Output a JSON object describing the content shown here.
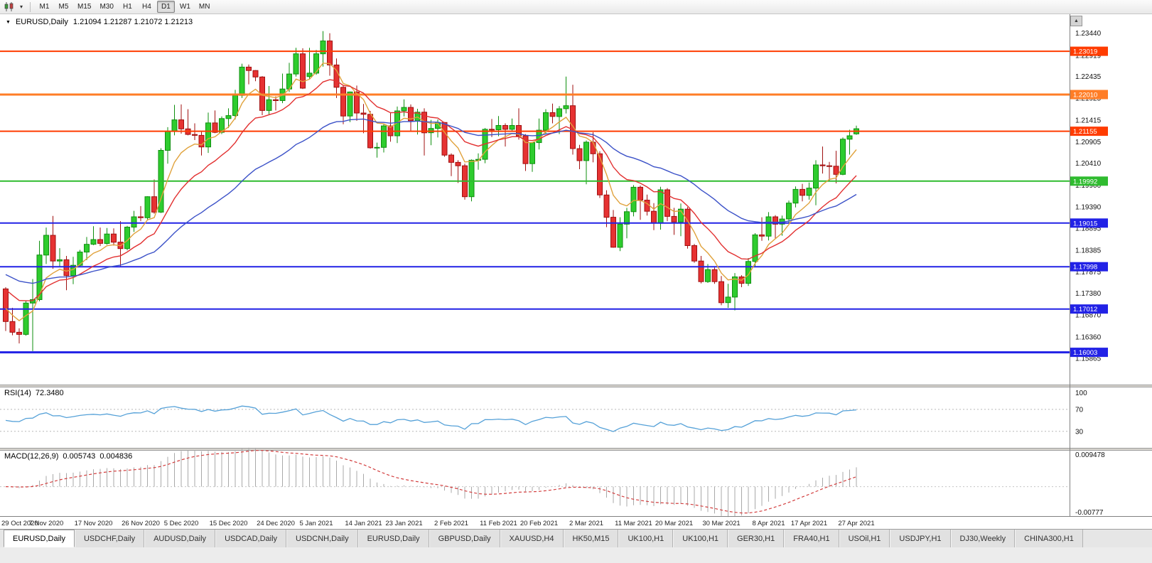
{
  "icons": {
    "chart_dropdown_caret": "▼",
    "toolbar_caret": "▾",
    "scroll_up": "▲"
  },
  "toolbar": {
    "timeframes": [
      "M1",
      "M5",
      "M15",
      "M30",
      "H1",
      "H4",
      "D1",
      "W1",
      "MN"
    ],
    "active_timeframe": "D1"
  },
  "chart": {
    "title": {
      "symbol": "EURUSD,Daily",
      "values": "1.21094 1.21287 1.21072 1.21213"
    },
    "price_axis_labels": [
      "1.23440",
      "1.22919",
      "1.22435",
      "1.21925",
      "1.21415",
      "1.20905",
      "1.20410",
      "1.19900",
      "1.19390",
      "1.18895",
      "1.18385",
      "1.17875",
      "1.17380",
      "1.16870",
      "1.16360",
      "1.15865"
    ],
    "hlines": [
      {
        "price": 1.23019,
        "label": "1.23019",
        "color": "#ff3c00",
        "width": 2
      },
      {
        "price": 1.2201,
        "label": "1.22010",
        "color": "#ff7d26",
        "width": 3
      },
      {
        "price": 1.21155,
        "label": "1.21155",
        "color": "#ff3c00",
        "width": 2
      },
      {
        "price": 1.19992,
        "label": "1.19992",
        "color": "#2fbb2f",
        "width": 2
      },
      {
        "price": 1.19015,
        "label": "1.19015",
        "color": "#2222e6",
        "width": 2
      },
      {
        "price": 1.17998,
        "label": "1.17998",
        "color": "#2222e6",
        "width": 2
      },
      {
        "price": 1.17012,
        "label": "1.17012",
        "color": "#2222e6",
        "width": 2
      },
      {
        "price": 1.16003,
        "label": "1.16003",
        "color": "#2222e6",
        "width": 3
      }
    ]
  },
  "chart_data": {
    "type": "candlestick",
    "symbol": "EURUSD",
    "timeframe": "Daily",
    "last_candle": {
      "open": 1.21094,
      "high": 1.21287,
      "low": 1.21072,
      "close": 1.21213
    },
    "price_range": {
      "max": 1.2385,
      "min": 1.1525
    },
    "colors": {
      "bull": "#2ecc2e",
      "bull_edge": "#0f8f0f",
      "bear": "#e63232",
      "bear_edge": "#a01010"
    },
    "moving_averages": [
      {
        "name": "fast-orange",
        "period": 6,
        "seed": 1.1715,
        "color": "#e0a23c"
      },
      {
        "name": "mid-red",
        "period": 14,
        "seed": 1.1758,
        "color": "#e23030"
      },
      {
        "name": "slow-blue",
        "period": 34,
        "seed": 1.1788,
        "color": "#3c52c8"
      }
    ],
    "date_ticks": [
      {
        "index": 0,
        "label": "29 Oct 2020"
      },
      {
        "index": 6,
        "label": "7 Nov 2020"
      },
      {
        "index": 13,
        "label": "17 Nov 2020"
      },
      {
        "index": 20,
        "label": "26 Nov 2020"
      },
      {
        "index": 26,
        "label": "5 Dec 2020"
      },
      {
        "index": 33,
        "label": "15 Dec 2020"
      },
      {
        "index": 40,
        "label": "24 Dec 2020"
      },
      {
        "index": 46,
        "label": "5 Jan 2021"
      },
      {
        "index": 53,
        "label": "14 Jan 2021"
      },
      {
        "index": 59,
        "label": "23 Jan 2021"
      },
      {
        "index": 66,
        "label": "2 Feb 2021"
      },
      {
        "index": 73,
        "label": "11 Feb 2021"
      },
      {
        "index": 79,
        "label": "20 Feb 2021"
      },
      {
        "index": 86,
        "label": "2 Mar 2021"
      },
      {
        "index": 93,
        "label": "11 Mar 2021"
      },
      {
        "index": 99,
        "label": "20 Mar 2021"
      },
      {
        "index": 106,
        "label": "30 Mar 2021"
      },
      {
        "index": 113,
        "label": "8 Apr 2021"
      },
      {
        "index": 119,
        "label": "17 Apr 2021"
      },
      {
        "index": 126,
        "label": "27 Apr 2021"
      }
    ],
    "candles": [
      [
        1.1748,
        1.1752,
        1.165,
        1.1672
      ],
      [
        1.1672,
        1.1704,
        1.164,
        1.1647
      ],
      [
        1.1647,
        1.1656,
        1.1621,
        1.1642
      ],
      [
        1.1642,
        1.172,
        1.1639,
        1.1715
      ],
      [
        1.1715,
        1.1771,
        1.1603,
        1.1723
      ],
      [
        1.1723,
        1.186,
        1.1719,
        1.1827
      ],
      [
        1.1827,
        1.1891,
        1.1806,
        1.1873
      ],
      [
        1.1873,
        1.1918,
        1.1795,
        1.1813
      ],
      [
        1.1813,
        1.1843,
        1.18,
        1.1816
      ],
      [
        1.1816,
        1.1825,
        1.1745,
        1.1779
      ],
      [
        1.1779,
        1.1823,
        1.1759,
        1.1803
      ],
      [
        1.1803,
        1.1839,
        1.1799,
        1.1834
      ],
      [
        1.1834,
        1.1869,
        1.1815,
        1.1852
      ],
      [
        1.1852,
        1.1894,
        1.185,
        1.1863
      ],
      [
        1.1863,
        1.1891,
        1.1848,
        1.1854
      ],
      [
        1.1854,
        1.189,
        1.1851,
        1.1876
      ],
      [
        1.1876,
        1.1889,
        1.1849,
        1.1857
      ],
      [
        1.1857,
        1.1906,
        1.18,
        1.1842
      ],
      [
        1.1842,
        1.1895,
        1.1838,
        1.1892
      ],
      [
        1.1892,
        1.193,
        1.1881,
        1.1916
      ],
      [
        1.1916,
        1.1941,
        1.1906,
        1.1914
      ],
      [
        1.1914,
        1.1964,
        1.191,
        1.1963
      ],
      [
        1.1963,
        1.2003,
        1.1923,
        1.1927
      ],
      [
        1.1927,
        1.2076,
        1.1925,
        1.2071
      ],
      [
        1.2071,
        1.2125,
        1.204,
        1.2115
      ],
      [
        1.2115,
        1.2177,
        1.2106,
        1.2142
      ],
      [
        1.2142,
        1.2178,
        1.211,
        1.2121
      ],
      [
        1.2121,
        1.2167,
        1.2106,
        1.2108
      ],
      [
        1.2108,
        1.2134,
        1.2095,
        1.2106
      ],
      [
        1.2106,
        1.2115,
        1.2059,
        1.2079
      ],
      [
        1.2079,
        1.2159,
        1.2065,
        1.2135
      ],
      [
        1.2135,
        1.2164,
        1.2111,
        1.2113
      ],
      [
        1.2113,
        1.215,
        1.2109,
        1.2145
      ],
      [
        1.2145,
        1.2169,
        1.2123,
        1.2152
      ],
      [
        1.2152,
        1.2212,
        1.2143,
        1.2199
      ],
      [
        1.2199,
        1.2273,
        1.2193,
        1.2265
      ],
      [
        1.2265,
        1.2271,
        1.2225,
        1.2257
      ],
      [
        1.2257,
        1.2258,
        1.2232,
        1.2242
      ],
      [
        1.2242,
        1.2244,
        1.2153,
        1.2164
      ],
      [
        1.2164,
        1.2221,
        1.2155,
        1.2189
      ],
      [
        1.2189,
        1.2197,
        1.2164,
        1.2187
      ],
      [
        1.2187,
        1.225,
        1.2181,
        1.2214
      ],
      [
        1.2214,
        1.2275,
        1.2207,
        1.2249
      ],
      [
        1.2249,
        1.231,
        1.2243,
        1.2296
      ],
      [
        1.2296,
        1.2309,
        1.2214,
        1.2216
      ],
      [
        1.2243,
        1.231,
        1.2237,
        1.2251
      ],
      [
        1.2251,
        1.2305,
        1.2247,
        1.2296
      ],
      [
        1.2296,
        1.2349,
        1.2266,
        1.2326
      ],
      [
        1.2326,
        1.2344,
        1.2245,
        1.227
      ],
      [
        1.227,
        1.2285,
        1.2193,
        1.2218
      ],
      [
        1.2218,
        1.2223,
        1.2132,
        1.2151
      ],
      [
        1.2151,
        1.2208,
        1.2137,
        1.2207
      ],
      [
        1.2207,
        1.2222,
        1.214,
        1.2158
      ],
      [
        1.2158,
        1.2179,
        1.2111,
        1.2155
      ],
      [
        1.2155,
        1.2163,
        1.2075,
        1.2077
      ],
      [
        1.2077,
        1.2089,
        1.2054,
        1.2078
      ],
      [
        1.2078,
        1.2132,
        1.2066,
        1.2128
      ],
      [
        1.2128,
        1.2158,
        1.2091,
        1.2105
      ],
      [
        1.2105,
        1.2173,
        1.2088,
        1.2163
      ],
      [
        1.2163,
        1.219,
        1.215,
        1.2171
      ],
      [
        1.2171,
        1.2178,
        1.2116,
        1.214
      ],
      [
        1.214,
        1.2168,
        1.2108,
        1.216
      ],
      [
        1.216,
        1.2169,
        1.2059,
        1.2112
      ],
      [
        1.2112,
        1.2142,
        1.2083,
        1.2122
      ],
      [
        1.2122,
        1.2143,
        1.2101,
        1.2136
      ],
      [
        1.2136,
        1.2137,
        1.2056,
        1.206
      ],
      [
        1.206,
        1.2064,
        1.2011,
        1.2043
      ],
      [
        1.2043,
        1.2048,
        1.1995,
        1.2035
      ],
      [
        1.2035,
        1.204,
        1.1956,
        1.1963
      ],
      [
        1.1963,
        1.205,
        1.1952,
        1.2048
      ],
      [
        1.2048,
        1.2064,
        1.2026,
        1.205
      ],
      [
        1.205,
        1.2123,
        1.2041,
        1.212
      ],
      [
        1.212,
        1.2144,
        1.2102,
        1.2119
      ],
      [
        1.2119,
        1.2151,
        1.2104,
        1.2129
      ],
      [
        1.2129,
        1.2134,
        1.208,
        1.212
      ],
      [
        1.212,
        1.2145,
        1.2117,
        1.2129
      ],
      [
        1.2129,
        1.2169,
        1.2096,
        1.2105
      ],
      [
        1.2105,
        1.2109,
        1.2023,
        1.204
      ],
      [
        1.204,
        1.209,
        1.2021,
        1.2089
      ],
      [
        1.2089,
        1.2145,
        1.2073,
        1.2118
      ],
      [
        1.2118,
        1.2167,
        1.2109,
        1.2159
      ],
      [
        1.2159,
        1.218,
        1.2134,
        1.215
      ],
      [
        1.215,
        1.2174,
        1.2109,
        1.2168
      ],
      [
        1.2168,
        1.2243,
        1.2157,
        1.2175
      ],
      [
        1.2175,
        1.2224,
        1.2061,
        1.2075
      ],
      [
        1.2075,
        1.2084,
        1.2027,
        1.2047
      ],
      [
        1.2047,
        1.2094,
        1.1992,
        1.209
      ],
      [
        1.209,
        1.2113,
        1.2043,
        1.2063
      ],
      [
        1.2063,
        1.2069,
        1.196,
        1.1967
      ],
      [
        1.1967,
        1.1978,
        1.1892,
        1.1915
      ],
      [
        1.1915,
        1.1932,
        1.1844,
        1.1845
      ],
      [
        1.1845,
        1.1915,
        1.1836,
        1.1899
      ],
      [
        1.1899,
        1.1937,
        1.1866,
        1.1928
      ],
      [
        1.1928,
        1.199,
        1.1917,
        1.1985
      ],
      [
        1.1985,
        1.1989,
        1.1909,
        1.1955
      ],
      [
        1.1955,
        1.1968,
        1.1919,
        1.1929
      ],
      [
        1.1929,
        1.1948,
        1.1885,
        1.1901
      ],
      [
        1.1901,
        1.1986,
        1.1886,
        1.1979
      ],
      [
        1.1979,
        1.1983,
        1.1906,
        1.1917
      ],
      [
        1.1917,
        1.1937,
        1.1874,
        1.1904
      ],
      [
        1.1904,
        1.1947,
        1.1871,
        1.1934
      ],
      [
        1.1934,
        1.1939,
        1.1842,
        1.1849
      ],
      [
        1.1849,
        1.1853,
        1.1809,
        1.1813
      ],
      [
        1.1813,
        1.1825,
        1.1761,
        1.1765
      ],
      [
        1.1765,
        1.1806,
        1.1762,
        1.1793
      ],
      [
        1.1793,
        1.1798,
        1.176,
        1.1765
      ],
      [
        1.1765,
        1.1778,
        1.171,
        1.1716
      ],
      [
        1.1716,
        1.176,
        1.1704,
        1.1729
      ],
      [
        1.1729,
        1.1785,
        1.1698,
        1.1776
      ],
      [
        1.1776,
        1.178,
        1.1752,
        1.1761
      ],
      [
        1.1761,
        1.182,
        1.1755,
        1.1812
      ],
      [
        1.1812,
        1.1878,
        1.1801,
        1.1874
      ],
      [
        1.1874,
        1.1915,
        1.186,
        1.1871
      ],
      [
        1.1871,
        1.1927,
        1.1861,
        1.1916
      ],
      [
        1.1916,
        1.192,
        1.1865,
        1.1899
      ],
      [
        1.1899,
        1.1919,
        1.1872,
        1.1911
      ],
      [
        1.1911,
        1.1954,
        1.1901,
        1.1948
      ],
      [
        1.1948,
        1.1987,
        1.1938,
        1.198
      ],
      [
        1.198,
        1.1993,
        1.1952,
        1.1966
      ],
      [
        1.1966,
        1.1996,
        1.1956,
        1.1983
      ],
      [
        1.1983,
        1.2048,
        1.1943,
        1.2037
      ],
      [
        1.2037,
        1.208,
        1.2017,
        1.2035
      ],
      [
        1.2035,
        1.2044,
        1.1999,
        1.2034
      ],
      [
        1.2034,
        1.207,
        1.1994,
        1.2015
      ],
      [
        1.2015,
        1.2101,
        1.2013,
        1.2097
      ],
      [
        1.2097,
        1.2119,
        1.2061,
        1.2105
      ],
      [
        1.21094,
        1.21287,
        1.21072,
        1.21213
      ]
    ]
  },
  "rsi_panel": {
    "label": "RSI(14)",
    "value": "72.3480",
    "period": 14,
    "range": [
      0,
      110
    ],
    "levels": [
      70,
      30
    ],
    "color": "#55a1d8",
    "axis_labels": [
      {
        "value": 100,
        "label": "100"
      },
      {
        "value": 70,
        "label": "70"
      },
      {
        "value": 30,
        "label": "30"
      }
    ]
  },
  "macd_panel": {
    "label": "MACD(12,26,9)",
    "value_main": "0.005743",
    "value_signal": "0.004836",
    "fast": 12,
    "slow": 26,
    "signal": 9,
    "range": [
      -0.00777,
      0.009478
    ],
    "axis_top": "0.009478",
    "axis_bottom": "-0.00777",
    "histogram_color": "#a9a9a9",
    "signal_color": "#d23c3c"
  },
  "tabs": {
    "active_index": 0,
    "items": [
      "EURUSD,Daily",
      "USDCHF,Daily",
      "AUDUSD,Daily",
      "USDCAD,Daily",
      "USDCNH,Daily",
      "EURUSD,Daily",
      "GBPUSD,Daily",
      "XAUUSD,H4",
      "HK50,M15",
      "UK100,H1",
      "UK100,H1",
      "GER30,H1",
      "FRA40,H1",
      "USOil,H1",
      "USDJPY,H1",
      "DJ30,Weekly",
      "CHINA300,H1"
    ]
  }
}
